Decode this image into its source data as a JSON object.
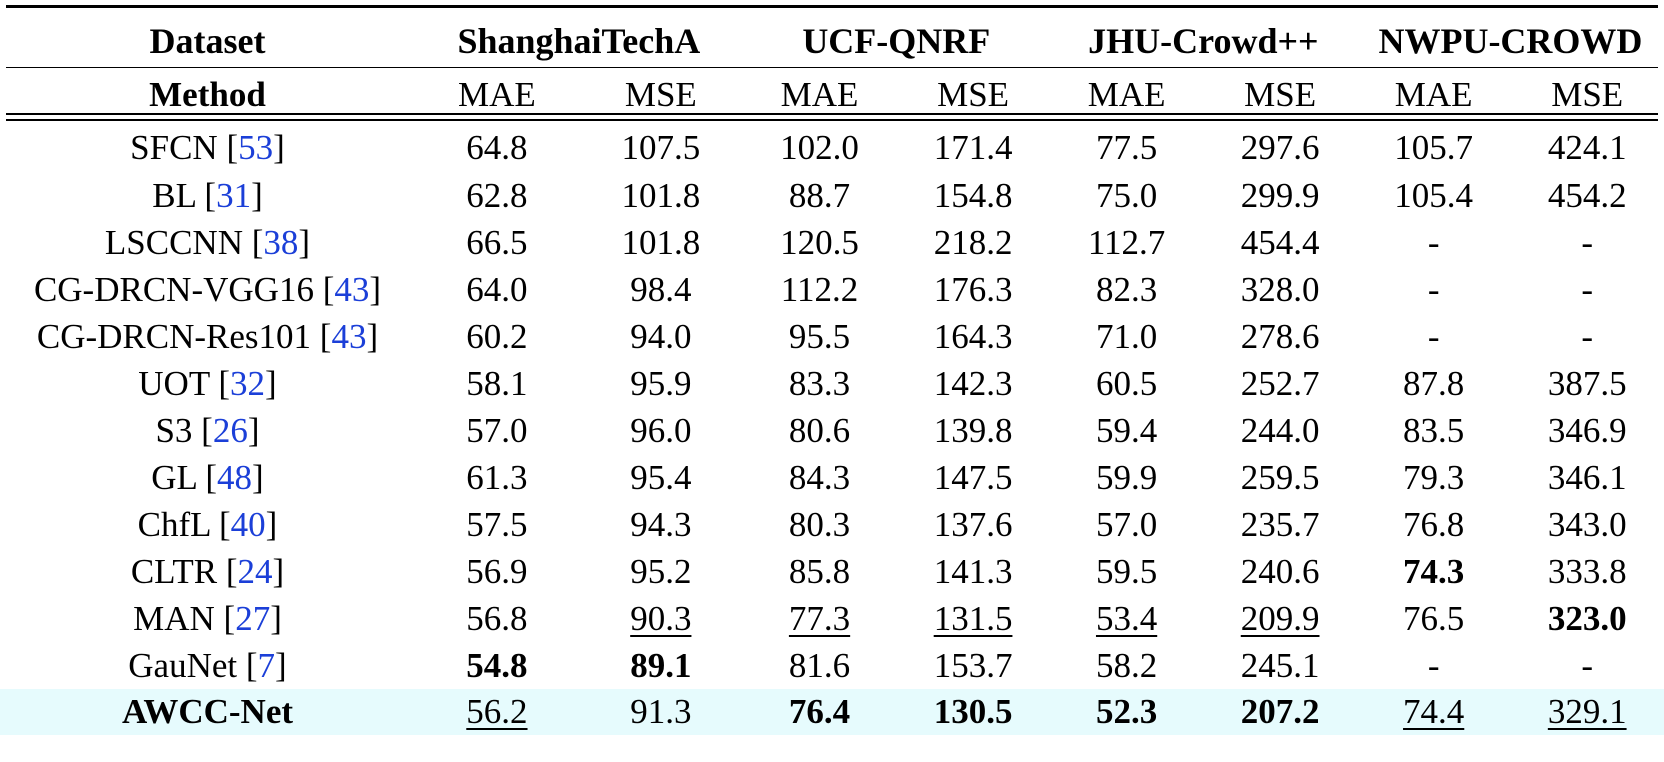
{
  "header": {
    "dataset_label": "Dataset",
    "method_label": "Method",
    "datasets": [
      "ShanghaiTechA",
      "UCF-QNRF",
      "JHU-Crowd++",
      "NWPU-CROWD"
    ],
    "metrics": [
      "MAE",
      "MSE",
      "MAE",
      "MSE",
      "MAE",
      "MSE",
      "MAE",
      "MSE"
    ]
  },
  "rows": [
    {
      "method": "SFCN ",
      "ref": "53",
      "open": "[",
      "close": "]",
      "vals": [
        "64.8",
        "107.5",
        "102.0",
        "171.4",
        "77.5",
        "297.6",
        "105.7",
        "424.1"
      ]
    },
    {
      "method": "BL ",
      "ref": "31",
      "open": "[",
      "close": "]",
      "vals": [
        "62.8",
        "101.8",
        "88.7",
        "154.8",
        "75.0",
        "299.9",
        "105.4",
        "454.2"
      ]
    },
    {
      "method": "LSCCNN ",
      "ref": "38",
      "open": "[",
      "close": "]",
      "vals": [
        "66.5",
        "101.8",
        "120.5",
        "218.2",
        "112.7",
        "454.4",
        "-",
        "-"
      ]
    },
    {
      "method": "CG-DRCN-VGG16 ",
      "ref": "43",
      "open": "[",
      "close": "]",
      "vals": [
        "64.0",
        "98.4",
        "112.2",
        "176.3",
        "82.3",
        "328.0",
        "-",
        "-"
      ]
    },
    {
      "method": "CG-DRCN-Res101 ",
      "ref": "43",
      "open": "[",
      "close": "]",
      "vals": [
        "60.2",
        "94.0",
        "95.5",
        "164.3",
        "71.0",
        "278.6",
        "-",
        "-"
      ]
    },
    {
      "method": "UOT ",
      "ref": "32",
      "open": "[",
      "close": "]",
      "vals": [
        "58.1",
        "95.9",
        "83.3",
        "142.3",
        "60.5",
        "252.7",
        "87.8",
        "387.5"
      ]
    },
    {
      "method": "S3 ",
      "ref": "26",
      "open": "[",
      "close": "]",
      "vals": [
        "57.0",
        "96.0",
        "80.6",
        "139.8",
        "59.4",
        "244.0",
        "83.5",
        "346.9"
      ]
    },
    {
      "method": "GL ",
      "ref": "48",
      "open": "[",
      "close": "]",
      "vals": [
        "61.3",
        "95.4",
        "84.3",
        "147.5",
        "59.9",
        "259.5",
        "79.3",
        "346.1"
      ]
    },
    {
      "method": "ChfL ",
      "ref": "40",
      "open": "[",
      "close": "]",
      "vals": [
        "57.5",
        "94.3",
        "80.3",
        "137.6",
        "57.0",
        "235.7",
        "76.8",
        "343.0"
      ]
    },
    {
      "method": "CLTR ",
      "ref": "24",
      "open": "[",
      "close": "]",
      "vals": [
        "56.9",
        "95.2",
        "85.8",
        "141.3",
        "59.5",
        "240.6",
        "74.3",
        "333.8"
      ],
      "bold": [
        6
      ]
    },
    {
      "method": "MAN ",
      "ref": "27",
      "open": "[",
      "close": "]",
      "vals": [
        "56.8",
        "90.3",
        "77.3",
        "131.5",
        "53.4",
        "209.9",
        "76.5",
        "323.0"
      ],
      "bold": [
        7
      ],
      "underline": [
        1,
        2,
        3,
        4,
        5
      ]
    },
    {
      "method": "GauNet ",
      "ref": "7",
      "open": "[",
      "close": "]",
      "vals": [
        "54.8",
        "89.1",
        "81.6",
        "153.7",
        "58.2",
        "245.1",
        "-",
        "-"
      ],
      "bold": [
        0,
        1
      ]
    },
    {
      "method": "AWCC-Net",
      "ref": "",
      "open": "",
      "close": "",
      "vals": [
        "56.2",
        "91.3",
        "76.4",
        "130.5",
        "52.3",
        "207.2",
        "74.4",
        "329.1"
      ],
      "bold": [
        2,
        3,
        4,
        5
      ],
      "underline": [
        0,
        6,
        7
      ],
      "method_bold": true,
      "highlight": true
    }
  ],
  "colors": {
    "citation": "#1b3fd8",
    "highlight_row": "#e6fbfd"
  }
}
